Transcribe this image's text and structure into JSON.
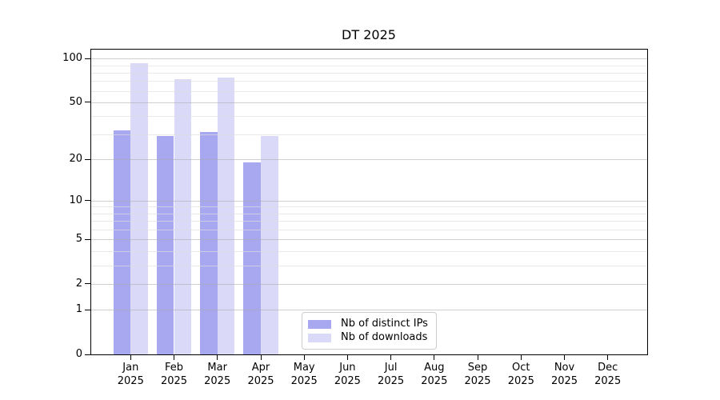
{
  "chart_data": {
    "type": "bar",
    "title": "DT 2025",
    "categories": [
      "Jan",
      "Feb",
      "Mar",
      "Apr",
      "May",
      "Jun",
      "Jul",
      "Aug",
      "Sep",
      "Oct",
      "Nov",
      "Dec"
    ],
    "year_label": "2025",
    "series": [
      {
        "name": "Nb of distinct IPs",
        "color": "#a8a8f0",
        "values": [
          32,
          29,
          31,
          19,
          null,
          null,
          null,
          null,
          null,
          null,
          null,
          null
        ]
      },
      {
        "name": "Nb of downloads",
        "color": "#dadaf8",
        "values": [
          93,
          72,
          74,
          29,
          null,
          null,
          null,
          null,
          null,
          null,
          null,
          null
        ]
      }
    ],
    "y_scale": "log1p",
    "ylim": [
      0,
      115
    ],
    "y_ticks": [
      0,
      1,
      2,
      5,
      10,
      20,
      50,
      100
    ],
    "y_minor_ticks": [
      3,
      4,
      6,
      7,
      8,
      9,
      30,
      40,
      60,
      70,
      80,
      90
    ],
    "xlabel": "",
    "ylabel": "",
    "grid": "on",
    "legend_position": "bottom-center"
  }
}
